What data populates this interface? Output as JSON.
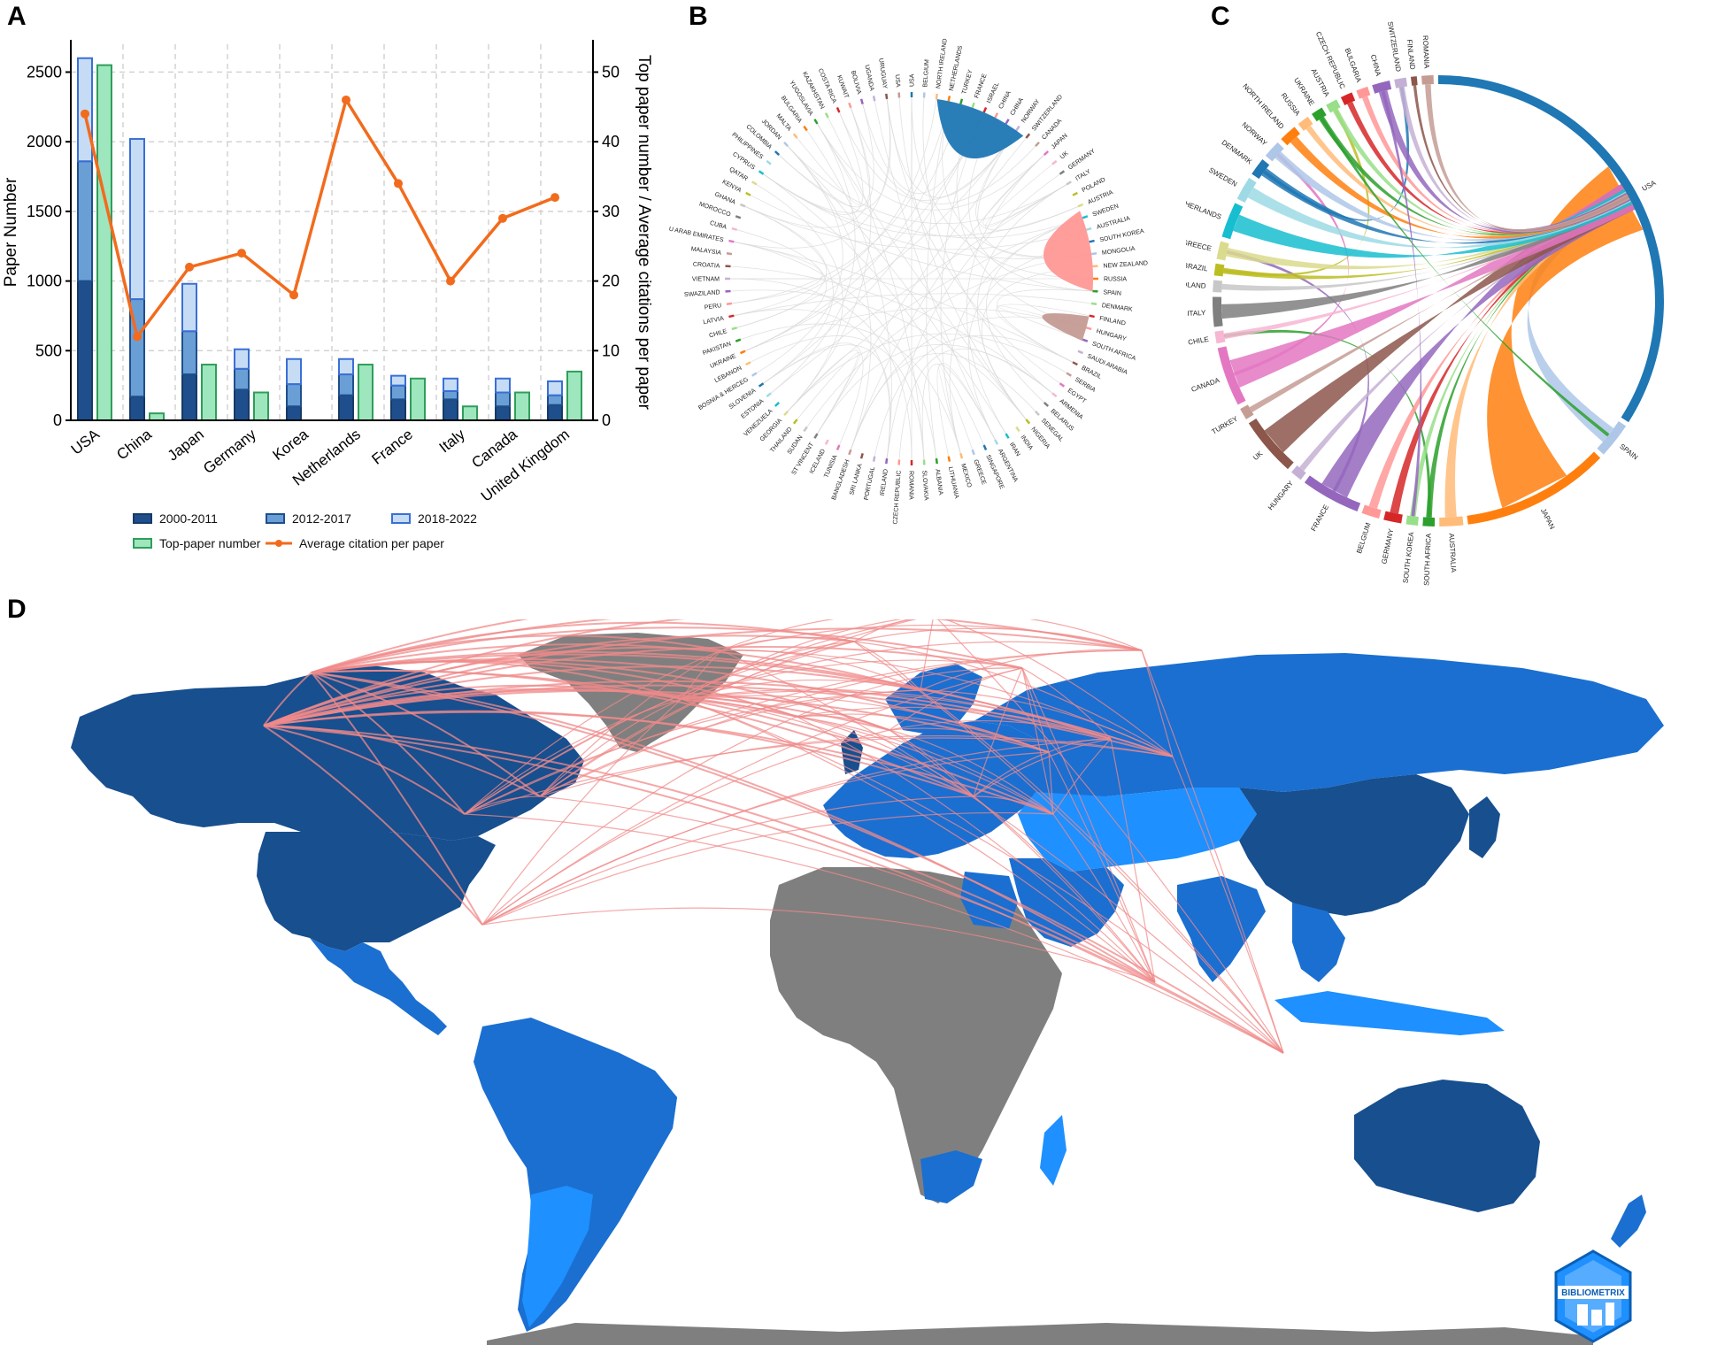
{
  "panels": {
    "a": "A",
    "b": "B",
    "c": "C",
    "d": "D"
  },
  "colors": {
    "p2000_2011": "#1f4e8c",
    "p2012_2017": "#6a9fd6",
    "p2018_2022": "#c6dcf5",
    "top_paper": "#9ee6bd",
    "top_paper_edge": "#2f9e5a",
    "avg_citation": "#f26b1d",
    "ocean": "#ffffff",
    "land_none": "#7f7f7f",
    "land_low": "#1e90ff",
    "land_mid": "#1a6fd1",
    "land_high": "#174f8f",
    "links": "#f08a8a"
  },
  "chart_data": [
    {
      "type": "bar",
      "panel": "A",
      "categories": [
        "USA",
        "China",
        "Japan",
        "Germany",
        "Korea",
        "Netherlands",
        "France",
        "Italy",
        "Canada",
        "United Kingdom"
      ],
      "series": [
        {
          "name": "2000-2011",
          "axis": "left",
          "stack": "papers",
          "values": [
            1000,
            170,
            330,
            220,
            100,
            180,
            150,
            150,
            100,
            110
          ]
        },
        {
          "name": "2012-2017",
          "axis": "left",
          "stack": "papers",
          "values": [
            860,
            700,
            310,
            150,
            160,
            150,
            100,
            60,
            100,
            70
          ]
        },
        {
          "name": "2018-2022",
          "axis": "left",
          "stack": "papers",
          "values": [
            740,
            1150,
            340,
            140,
            180,
            110,
            70,
            90,
            100,
            100
          ]
        },
        {
          "name": "Top-paper number",
          "axis": "right",
          "type": "bar",
          "values": [
            51,
            1,
            8,
            4,
            0,
            8,
            6,
            2,
            4,
            7
          ]
        },
        {
          "name": "Average citation per paper",
          "axis": "right",
          "type": "line",
          "values": [
            44,
            12,
            22,
            24,
            18,
            46,
            34,
            20,
            29,
            32
          ]
        }
      ],
      "ylabel": "Paper Number",
      "y2label": "Top paper number / Average citations per paper",
      "ylim": [
        0,
        2700
      ],
      "y2lim": [
        0,
        54
      ],
      "yticks": [
        0,
        500,
        1000,
        1500,
        2000,
        2500
      ],
      "y2ticks": [
        0,
        10,
        20,
        30,
        40,
        50
      ],
      "grid": true,
      "legend": "bottom"
    }
  ],
  "chord_b": {
    "labels": [
      "USA",
      "BELGIUM",
      "NORTH IRELAND",
      "NETHERLANDS",
      "TURKEY",
      "FRANCE",
      "ISRAEL",
      "CHINA",
      "CHINA",
      "NORWAY",
      "SWITZERLAND",
      "CANADA",
      "JAPAN",
      "UK",
      "GERMANY",
      "ITALY",
      "POLAND",
      "AUSTRIA",
      "SWEDEN",
      "AUSTRALIA",
      "SOUTH KOREA",
      "MONGOLIA",
      "NEW ZEALAND",
      "RUSSIA",
      "SPAIN",
      "DENMARK",
      "FINLAND",
      "HUNGARY",
      "SOUTH AFRICA",
      "SAUDI ARABIA",
      "BRAZIL",
      "SERBIA",
      "EGYPT",
      "ARMENIA",
      "BELARUS",
      "SENEGAL",
      "NIGERIA",
      "INDIA",
      "IRAN",
      "ARGENTINA",
      "SINGAPORE",
      "GREECE",
      "MEXICO",
      "LITHUANIA",
      "ALBANIA",
      "SLOVAKIA",
      "ROMANIA",
      "CZECH REPUBLIC",
      "IRELAND",
      "PORTUGAL",
      "SRI LANKA",
      "BANGLADESH",
      "TUNISIA",
      "ICELAND",
      "ST VINCENT",
      "SUDAN",
      "THAILAND",
      "GEORGIA",
      "VENEZUELA",
      "ESTONIA",
      "SLOVENIA",
      "BOSNIA & HERCEG",
      "LEBANON",
      "UKRAINE",
      "PAKISTAN",
      "CHILE",
      "LATVIA",
      "PERU",
      "SWAZILAND",
      "VIETNAM",
      "CROATIA",
      "MALAYSIA",
      "U ARAB EMIRATES",
      "CUBA",
      "MOROCCO",
      "GHANA",
      "KENYA",
      "QATAR",
      "CYPRUS",
      "PHILIPPINES",
      "COLOMBIA",
      "JORDAN",
      "MALTA",
      "BULGARIA",
      "YUGOSLAVIA",
      "KAZAKHSTAN",
      "COSTA RICA",
      "KUWAIT",
      "BOLIVIA",
      "UGANDA",
      "URUGUAY",
      "USA"
    ]
  },
  "chord_c": {
    "labels": [
      "USA",
      "SPAIN",
      "JAPAN",
      "AUSTRALIA",
      "SOUTH AFRICA",
      "SOUTH KOREA",
      "GERMANY",
      "BELGIUM",
      "FRANCE",
      "HUNGARY",
      "UK",
      "TURKEY",
      "CANADA",
      "CHILE",
      "ITALY",
      "POLAND",
      "BRAZIL",
      "GREECE",
      "NETHERLANDS",
      "SWEDEN",
      "DENMARK",
      "NORWAY",
      "NORTH IRELAND",
      "RUSSIA",
      "UKRAINE",
      "AUSTRIA",
      "CZECH REPUBLIC",
      "BULGARIA",
      "CHINA",
      "SWITZERLAND",
      "FINLAND",
      "ROMANIA"
    ]
  },
  "logo": {
    "text": "BIBLIOMETRIX"
  }
}
